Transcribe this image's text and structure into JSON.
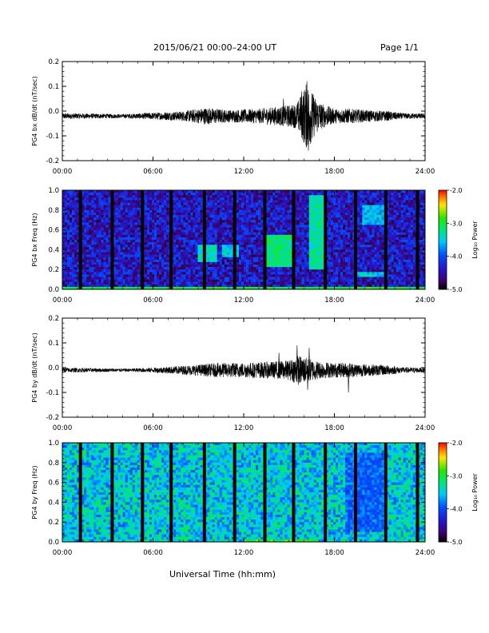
{
  "header": {
    "title": "2015/06/21  00:00–24:00 UT",
    "page": "Page 1/1"
  },
  "footer": {
    "xlabel": "Universal Time (hh:mm)"
  },
  "chart_data": [
    {
      "type": "line",
      "ylabel": "PG4 bx dB/dt (nT/sec)",
      "ylim": [
        -0.2,
        0.2
      ],
      "yticks": [
        "0.2",
        "0.1",
        "0.0",
        "-0.1",
        "-0.2"
      ],
      "xlim": [
        0,
        24
      ],
      "xticks": [
        "00:00",
        "06:00",
        "12:00",
        "18:00",
        "24:00"
      ],
      "series": [
        {
          "values": [
            [
              0,
              -0.02
            ],
            [
              2,
              -0.02
            ],
            [
              4,
              -0.02
            ],
            [
              6,
              -0.02
            ],
            [
              8,
              -0.02
            ],
            [
              9.5,
              -0.02
            ],
            [
              11,
              -0.02
            ],
            [
              13,
              -0.02
            ],
            [
              14.5,
              -0.02
            ],
            [
              16.2,
              -0.02
            ],
            [
              17,
              -0.02
            ],
            [
              18,
              -0.02
            ],
            [
              20,
              -0.02
            ],
            [
              22,
              -0.02
            ],
            [
              24,
              -0.02
            ]
          ],
          "envelope": [
            [
              0,
              0.012
            ],
            [
              2,
              0.01
            ],
            [
              4,
              0.008
            ],
            [
              6,
              0.014
            ],
            [
              8,
              0.02
            ],
            [
              9.5,
              0.035
            ],
            [
              11,
              0.025
            ],
            [
              13,
              0.03
            ],
            [
              14.5,
              0.04
            ],
            [
              15.5,
              0.05
            ],
            [
              16.2,
              0.14
            ],
            [
              16.7,
              0.08
            ],
            [
              17.2,
              0.05
            ],
            [
              18,
              0.03
            ],
            [
              19,
              0.03
            ],
            [
              20,
              0.025
            ],
            [
              21.5,
              0.02
            ],
            [
              22.5,
              0.012
            ],
            [
              24,
              0.01
            ]
          ],
          "peaks": [
            [
              16.15,
              0.12
            ],
            [
              16.25,
              -0.16
            ],
            [
              16.5,
              -0.11
            ],
            [
              15.8,
              0.08
            ],
            [
              14.6,
              0.05
            ]
          ]
        }
      ]
    },
    {
      "type": "heatmap",
      "ylabel": "PG4 bx Freq (Hz)",
      "ylim": [
        0.0,
        1.0
      ],
      "yticks": [
        "1.0",
        "0.8",
        "0.6",
        "0.4",
        "0.2",
        "0.0"
      ],
      "xlim": [
        0,
        24
      ],
      "xticks": [
        "00:00",
        "06:00",
        "12:00",
        "18:00",
        "24:00"
      ],
      "colorbar": {
        "label": "Log₁₀ Power",
        "range": [
          -5.0,
          -2.0
        ],
        "ticks": [
          "-2.0",
          "-3.0",
          "-4.0",
          "-5.0"
        ]
      },
      "base_level": -4.4,
      "gaps_hours": [
        1.2,
        3.3,
        5.3,
        7.2,
        9.4,
        11.4,
        13.4,
        15.3,
        17.4,
        19.4,
        21.4,
        23.5
      ],
      "features": [
        {
          "t": [
            9.0,
            10.2
          ],
          "f": [
            0.28,
            0.45
          ],
          "level": -3.4
        },
        {
          "t": [
            10.6,
            11.6
          ],
          "f": [
            0.32,
            0.44
          ],
          "level": -3.5
        },
        {
          "t": [
            13.5,
            15.3
          ],
          "f": [
            0.22,
            0.55
          ],
          "level": -3.2
        },
        {
          "t": [
            16.4,
            17.5
          ],
          "f": [
            0.2,
            0.95
          ],
          "level": -3.3
        },
        {
          "t": [
            19.8,
            21.5
          ],
          "f": [
            0.65,
            0.85
          ],
          "level": -3.6
        },
        {
          "t": [
            19.5,
            21.2
          ],
          "f": [
            0.12,
            0.18
          ],
          "level": -3.5
        },
        {
          "t": [
            0,
            24
          ],
          "f": [
            0.0,
            0.03
          ],
          "level": -3.0
        }
      ]
    },
    {
      "type": "line",
      "ylabel": "PG4 by dB/dt (nT/sec)",
      "ylim": [
        -0.2,
        0.2
      ],
      "yticks": [
        "0.2",
        "0.1",
        "0.0",
        "-0.1",
        "-0.2"
      ],
      "xlim": [
        0,
        24
      ],
      "xticks": [
        "00:00",
        "06:00",
        "12:00",
        "18:00",
        "24:00"
      ],
      "series": [
        {
          "values": [
            [
              0,
              -0.01
            ],
            [
              24,
              -0.01
            ]
          ],
          "envelope": [
            [
              0,
              0.01
            ],
            [
              2,
              0.008
            ],
            [
              4,
              0.006
            ],
            [
              6,
              0.01
            ],
            [
              8,
              0.018
            ],
            [
              9.5,
              0.025
            ],
            [
              10.5,
              0.03
            ],
            [
              12,
              0.03
            ],
            [
              14,
              0.035
            ],
            [
              15,
              0.04
            ],
            [
              15.6,
              0.06
            ],
            [
              16.2,
              0.05
            ],
            [
              17,
              0.035
            ],
            [
              18,
              0.03
            ],
            [
              19,
              0.03
            ],
            [
              20,
              0.025
            ],
            [
              21.5,
              0.02
            ],
            [
              22.5,
              0.012
            ],
            [
              24,
              0.01
            ]
          ],
          "peaks": [
            [
              15.5,
              0.09
            ],
            [
              16.3,
              0.08
            ],
            [
              16.2,
              -0.09
            ],
            [
              18.9,
              -0.1
            ],
            [
              14.3,
              0.06
            ]
          ]
        }
      ]
    },
    {
      "type": "heatmap",
      "ylabel": "PG4 by Freq (Hz)",
      "ylim": [
        0.0,
        1.0
      ],
      "yticks": [
        "1.0",
        "0.8",
        "0.6",
        "0.4",
        "0.2",
        "0.0"
      ],
      "xlim": [
        0,
        24
      ],
      "xticks": [
        "00:00",
        "06:00",
        "12:00",
        "18:00",
        "24:00"
      ],
      "colorbar": {
        "label": "Log₁₀ Power",
        "range": [
          -5.0,
          -2.0
        ],
        "ticks": [
          "-2.0",
          "-3.0",
          "-4.0",
          "-5.0"
        ]
      },
      "base_level": -3.5,
      "gaps_hours": [
        1.2,
        3.3,
        5.3,
        7.2,
        9.4,
        11.4,
        13.4,
        15.3,
        17.4,
        19.4,
        21.4,
        23.5
      ],
      "features": [
        {
          "t": [
            18.8,
            21.2
          ],
          "f": [
            0.1,
            0.9
          ],
          "level": -3.9
        },
        {
          "t": [
            12.0,
            17.0
          ],
          "f": [
            0.0,
            0.03
          ],
          "level": -2.9
        }
      ]
    }
  ]
}
